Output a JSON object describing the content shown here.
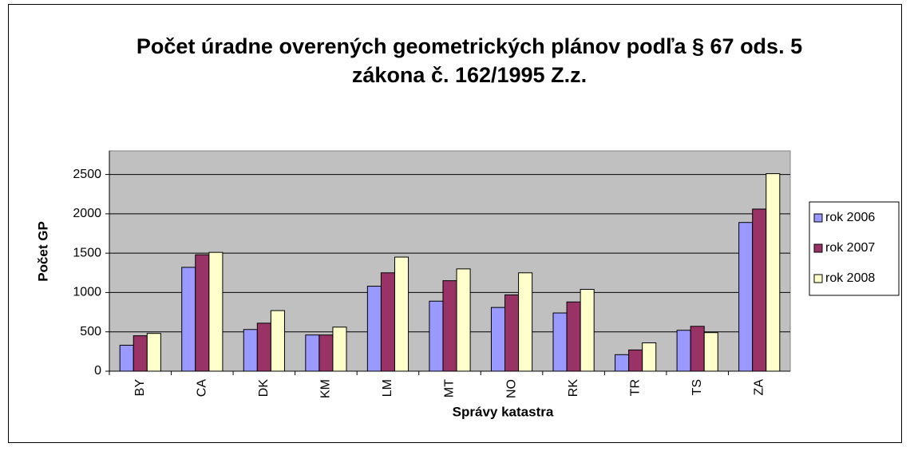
{
  "chart_data": {
    "type": "bar",
    "title": "Počet úradne overených geometrických plánov podľa § 67 ods. 5 zákona č. 162/1995 Z.z.",
    "x_label": "Správy katastra",
    "y_label": "Počet GP",
    "categories": [
      "BY",
      "CA",
      "DK",
      "KM",
      "LM",
      "MT",
      "NO",
      "RK",
      "TR",
      "TS",
      "ZA"
    ],
    "series": [
      {
        "name": "rok 2006",
        "color": "#9999ff",
        "values": [
          330,
          1320,
          530,
          460,
          1080,
          890,
          810,
          740,
          210,
          520,
          1890
        ]
      },
      {
        "name": "rok 2007",
        "color": "#993366",
        "values": [
          450,
          1480,
          610,
          460,
          1250,
          1150,
          970,
          880,
          270,
          570,
          2060
        ]
      },
      {
        "name": "rok 2008",
        "color": "#ffffcc",
        "values": [
          480,
          1510,
          770,
          560,
          1450,
          1300,
          1250,
          1040,
          360,
          490,
          2510
        ]
      }
    ],
    "ylim": [
      0,
      2800
    ],
    "yticks": [
      0,
      500,
      1000,
      1500,
      2000,
      2500
    ],
    "grid": true,
    "legend": "right"
  }
}
